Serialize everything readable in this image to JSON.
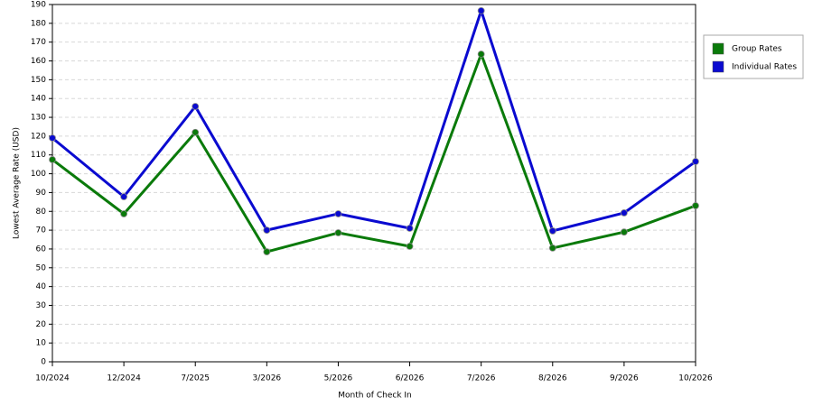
{
  "chart_data": {
    "type": "line",
    "x_label": "Month of Check In",
    "y_label": "Lowest Average Rate (USD)",
    "categories": [
      "10/2024",
      "12/2024",
      "7/2025",
      "3/2026",
      "5/2026",
      "6/2026",
      "7/2026",
      "8/2026",
      "9/2026",
      "10/2026"
    ],
    "series": [
      {
        "name": "Group Rates",
        "color": "#0a7a0a",
        "values": [
          107.5,
          78.7,
          122,
          58.5,
          68.6,
          61.4,
          163.6,
          60.5,
          69,
          83
        ]
      },
      {
        "name": "Individual Rates",
        "color": "#0a0ad0",
        "values": [
          119,
          87.8,
          135.8,
          70,
          78.7,
          71,
          186.7,
          69.6,
          79.2,
          106.5
        ]
      }
    ],
    "ylim": [
      0,
      190
    ],
    "yticks": [
      0,
      10,
      20,
      30,
      40,
      50,
      60,
      70,
      80,
      90,
      100,
      110,
      120,
      130,
      140,
      150,
      160,
      170,
      180,
      190
    ],
    "grid": true,
    "legend": "right"
  }
}
